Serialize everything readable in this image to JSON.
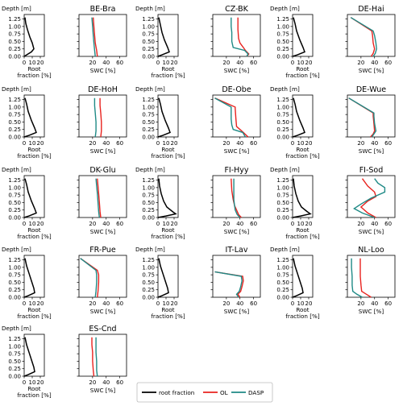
{
  "labels": {
    "depth": "Depth [m]",
    "root_line1": "Root",
    "root_line2": "fraction [%]",
    "swc": "SWC [%]"
  },
  "legend": {
    "items": [
      {
        "label": "root fraction",
        "color": "#000000"
      },
      {
        "label": "OL",
        "color": "#e8231f"
      },
      {
        "label": "DASP",
        "color": "#1f8a86"
      }
    ]
  },
  "colors": {
    "root": "#000000",
    "ol": "#e8231f",
    "dasp": "#1f8a86"
  },
  "chart_data": {
    "type": "line",
    "depth_ticks": [
      "0.00",
      "0.25",
      "0.50",
      "0.75",
      "1.00",
      "1.25"
    ],
    "root_ticks": [
      "0",
      "10",
      "20"
    ],
    "swc_ticks": [
      "20",
      "40",
      "60"
    ],
    "root_xlim": [
      0,
      25
    ],
    "swc_xlim": [
      0,
      70
    ],
    "ylim": [
      1.4,
      0.0
    ],
    "sites": [
      {
        "name": "BE-Bra",
        "root": [
          [
            0,
            0.0
          ],
          [
            3,
            0.05
          ],
          [
            9,
            0.15
          ],
          [
            12,
            0.25
          ],
          [
            10,
            0.45
          ],
          [
            7,
            0.65
          ],
          [
            4,
            0.9
          ],
          [
            2,
            1.1
          ],
          [
            1,
            1.3
          ]
        ],
        "ol": [
          [
            27,
            0.0
          ],
          [
            26,
            0.2
          ],
          [
            24,
            0.45
          ],
          [
            23,
            0.7
          ],
          [
            22,
            1.0
          ],
          [
            21,
            1.3
          ]
        ],
        "dasp": [
          [
            24,
            0.0
          ],
          [
            23,
            0.2
          ],
          [
            22,
            0.45
          ],
          [
            21,
            0.7
          ],
          [
            20,
            1.0
          ],
          [
            19,
            1.3
          ]
        ]
      },
      {
        "name": "CZ-BK",
        "root": [
          [
            0,
            0.0
          ],
          [
            5,
            0.05
          ],
          [
            14,
            0.15
          ],
          [
            12,
            0.3
          ],
          [
            8,
            0.55
          ],
          [
            5,
            0.8
          ],
          [
            3,
            1.05
          ],
          [
            1,
            1.3
          ]
        ],
        "ol": [
          [
            50,
            0.0
          ],
          [
            53,
            0.08
          ],
          [
            48,
            0.2
          ],
          [
            45,
            0.3
          ],
          [
            40,
            0.45
          ],
          [
            38,
            0.6
          ],
          [
            37,
            0.9
          ],
          [
            37,
            1.3
          ]
        ],
        "dasp": [
          [
            50,
            0.0
          ],
          [
            52,
            0.08
          ],
          [
            47,
            0.2
          ],
          [
            30,
            0.3
          ],
          [
            28,
            0.5
          ],
          [
            28,
            0.8
          ],
          [
            27,
            1.0
          ],
          [
            27,
            1.3
          ]
        ]
      },
      {
        "name": "DE-Hai",
        "root": [
          [
            0,
            0.0
          ],
          [
            6,
            0.05
          ],
          [
            15,
            0.15
          ],
          [
            13,
            0.3
          ],
          [
            9,
            0.55
          ],
          [
            5,
            0.85
          ],
          [
            3,
            1.1
          ],
          [
            1,
            1.3
          ]
        ],
        "ol": [
          [
            35,
            0.0
          ],
          [
            38,
            0.1
          ],
          [
            40,
            0.25
          ],
          [
            38,
            0.45
          ],
          [
            37,
            0.7
          ],
          [
            36,
            0.85
          ],
          [
            5,
            1.3
          ]
        ],
        "dasp": [
          [
            38,
            0.0
          ],
          [
            41,
            0.1
          ],
          [
            43,
            0.25
          ],
          [
            42,
            0.45
          ],
          [
            40,
            0.7
          ],
          [
            38,
            0.85
          ],
          [
            5,
            1.3
          ]
        ]
      },
      {
        "name": "DE-HoH",
        "root": [
          [
            0,
            0.0
          ],
          [
            6,
            0.05
          ],
          [
            15,
            0.15
          ],
          [
            13,
            0.3
          ],
          [
            9,
            0.55
          ],
          [
            5,
            0.85
          ],
          [
            3,
            1.1
          ],
          [
            1,
            1.3
          ]
        ],
        "ol": [
          [
            32,
            0.0
          ],
          [
            33,
            0.2
          ],
          [
            33,
            0.5
          ],
          [
            32,
            0.8
          ],
          [
            31,
            1.05
          ],
          [
            31,
            1.3
          ]
        ],
        "dasp": [
          [
            24,
            0.0
          ],
          [
            25,
            0.2
          ],
          [
            25,
            0.5
          ],
          [
            24,
            0.8
          ],
          [
            23,
            1.05
          ],
          [
            23,
            1.3
          ]
        ]
      },
      {
        "name": "DE-Obe",
        "root": [
          [
            0,
            0.0
          ],
          [
            6,
            0.05
          ],
          [
            15,
            0.15
          ],
          [
            13,
            0.3
          ],
          [
            9,
            0.55
          ],
          [
            5,
            0.85
          ],
          [
            3,
            1.1
          ],
          [
            1,
            1.3
          ]
        ],
        "ol": [
          [
            52,
            0.0
          ],
          [
            45,
            0.15
          ],
          [
            40,
            0.25
          ],
          [
            35,
            0.35
          ],
          [
            34,
            0.6
          ],
          [
            33,
            0.95
          ],
          [
            33,
            1.0
          ],
          [
            3,
            1.3
          ]
        ],
        "dasp": [
          [
            48,
            0.0
          ],
          [
            44,
            0.15
          ],
          [
            30,
            0.25
          ],
          [
            28,
            0.4
          ],
          [
            27,
            0.6
          ],
          [
            27,
            0.9
          ],
          [
            27,
            1.0
          ],
          [
            3,
            1.3
          ]
        ]
      },
      {
        "name": "DE-Wue",
        "root": [
          [
            0,
            0.0
          ],
          [
            6,
            0.05
          ],
          [
            15,
            0.15
          ],
          [
            13,
            0.3
          ],
          [
            9,
            0.55
          ],
          [
            5,
            0.85
          ],
          [
            3,
            1.1
          ],
          [
            1,
            1.3
          ]
        ],
        "ol": [
          [
            34,
            0.0
          ],
          [
            38,
            0.1
          ],
          [
            40,
            0.2
          ],
          [
            39,
            0.45
          ],
          [
            38,
            0.7
          ],
          [
            38,
            0.8
          ],
          [
            2,
            1.3
          ]
        ],
        "dasp": [
          [
            36,
            0.0
          ],
          [
            39,
            0.1
          ],
          [
            42,
            0.2
          ],
          [
            40,
            0.45
          ],
          [
            39,
            0.7
          ],
          [
            39,
            0.8
          ],
          [
            2,
            1.3
          ]
        ]
      },
      {
        "name": "DK-Glu",
        "root": [
          [
            0,
            0.0
          ],
          [
            6,
            0.05
          ],
          [
            15,
            0.15
          ],
          [
            13,
            0.3
          ],
          [
            9,
            0.55
          ],
          [
            5,
            0.85
          ],
          [
            3,
            1.1
          ],
          [
            1,
            1.3
          ]
        ],
        "ol": [
          [
            32,
            0.0
          ],
          [
            31,
            0.2
          ],
          [
            30,
            0.5
          ],
          [
            29,
            0.8
          ],
          [
            28,
            1.05
          ],
          [
            27,
            1.3
          ]
        ],
        "dasp": [
          [
            30,
            0.0
          ],
          [
            29,
            0.2
          ],
          [
            28,
            0.5
          ],
          [
            27,
            0.8
          ],
          [
            26,
            1.05
          ],
          [
            25,
            1.3
          ]
        ]
      },
      {
        "name": "FI-Hyy",
        "root": [
          [
            0,
            0.0
          ],
          [
            10,
            0.05
          ],
          [
            22,
            0.12
          ],
          [
            18,
            0.2
          ],
          [
            11,
            0.35
          ],
          [
            7,
            0.55
          ],
          [
            4,
            0.8
          ],
          [
            2,
            1.05
          ],
          [
            1,
            1.3
          ]
        ],
        "ol": [
          [
            42,
            0.0
          ],
          [
            38,
            0.1
          ],
          [
            35,
            0.25
          ],
          [
            32,
            0.4
          ],
          [
            30,
            0.6
          ],
          [
            28,
            0.9
          ],
          [
            27,
            1.3
          ]
        ],
        "dasp": [
          [
            40,
            0.0
          ],
          [
            36,
            0.1
          ],
          [
            33,
            0.25
          ],
          [
            32,
            0.4
          ],
          [
            31,
            0.6
          ],
          [
            31,
            0.9
          ],
          [
            31,
            1.3
          ]
        ]
      },
      {
        "name": "FI-Sod",
        "root": [
          [
            0,
            0.0
          ],
          [
            10,
            0.05
          ],
          [
            22,
            0.12
          ],
          [
            18,
            0.2
          ],
          [
            11,
            0.35
          ],
          [
            7,
            0.55
          ],
          [
            4,
            0.8
          ],
          [
            2,
            1.05
          ],
          [
            1,
            1.3
          ]
        ],
        "ol": [
          [
            42,
            0.0
          ],
          [
            30,
            0.15
          ],
          [
            20,
            0.35
          ],
          [
            30,
            0.55
          ],
          [
            42,
            0.7
          ],
          [
            40,
            0.85
          ],
          [
            30,
            1.05
          ],
          [
            22,
            1.3
          ]
        ],
        "dasp": [
          [
            40,
            0.0
          ],
          [
            22,
            0.15
          ],
          [
            10,
            0.3
          ],
          [
            20,
            0.45
          ],
          [
            35,
            0.65
          ],
          [
            55,
            0.85
          ],
          [
            55,
            1.0
          ],
          [
            45,
            1.15
          ],
          [
            40,
            1.3
          ]
        ]
      },
      {
        "name": "FR-Pue",
        "root": [
          [
            0,
            0.0
          ],
          [
            5,
            0.05
          ],
          [
            13,
            0.15
          ],
          [
            12,
            0.3
          ],
          [
            9,
            0.55
          ],
          [
            6,
            0.8
          ],
          [
            3,
            1.05
          ],
          [
            1,
            1.3
          ]
        ],
        "ol": [
          [
            27,
            0.0
          ],
          [
            28,
            0.2
          ],
          [
            29,
            0.5
          ],
          [
            29,
            0.75
          ],
          [
            27,
            0.9
          ],
          [
            2,
            1.3
          ]
        ],
        "dasp": [
          [
            24,
            0.0
          ],
          [
            25,
            0.2
          ],
          [
            26,
            0.5
          ],
          [
            26,
            0.75
          ],
          [
            25,
            0.9
          ],
          [
            2,
            1.3
          ]
        ]
      },
      {
        "name": "IT-Lav",
        "root": [
          [
            0,
            0.0
          ],
          [
            5,
            0.05
          ],
          [
            13,
            0.15
          ],
          [
            12,
            0.3
          ],
          [
            9,
            0.55
          ],
          [
            6,
            0.8
          ],
          [
            3,
            1.05
          ],
          [
            1,
            1.3
          ]
        ],
        "ol": [
          [
            40,
            0.0
          ],
          [
            37,
            0.1
          ],
          [
            41,
            0.2
          ],
          [
            43,
            0.35
          ],
          [
            45,
            0.55
          ],
          [
            44,
            0.7
          ],
          [
            3,
            0.85
          ]
        ],
        "dasp": [
          [
            38,
            0.0
          ],
          [
            35,
            0.1
          ],
          [
            39,
            0.2
          ],
          [
            41,
            0.35
          ],
          [
            43,
            0.55
          ],
          [
            42,
            0.7
          ],
          [
            3,
            0.85
          ]
        ]
      },
      {
        "name": "NL-Loo",
        "root": [
          [
            0,
            0.0
          ],
          [
            5,
            0.05
          ],
          [
            13,
            0.15
          ],
          [
            12,
            0.3
          ],
          [
            9,
            0.55
          ],
          [
            6,
            0.8
          ],
          [
            3,
            1.05
          ],
          [
            1,
            1.3
          ]
        ],
        "ol": [
          [
            35,
            0.0
          ],
          [
            28,
            0.1
          ],
          [
            21,
            0.2
          ],
          [
            20,
            0.4
          ],
          [
            19,
            0.7
          ],
          [
            19,
            1.0
          ],
          [
            19,
            1.3
          ]
        ],
        "dasp": [
          [
            22,
            0.0
          ],
          [
            14,
            0.1
          ],
          [
            8,
            0.2
          ],
          [
            7,
            0.4
          ],
          [
            7,
            0.7
          ],
          [
            6,
            1.0
          ],
          [
            6,
            1.3
          ]
        ]
      },
      {
        "name": "ES-Cnd",
        "root": [
          [
            0,
            0.0
          ],
          [
            5,
            0.05
          ],
          [
            13,
            0.15
          ],
          [
            12,
            0.3
          ],
          [
            9,
            0.55
          ],
          [
            6,
            0.8
          ],
          [
            3,
            1.05
          ],
          [
            1,
            1.3
          ]
        ],
        "ol": [
          [
            22,
            0.0
          ],
          [
            21,
            0.2
          ],
          [
            20,
            0.5
          ],
          [
            20,
            0.8
          ],
          [
            19,
            1.05
          ],
          [
            19,
            1.3
          ]
        ],
        "dasp": [
          [
            27,
            0.0
          ],
          [
            26,
            0.2
          ],
          [
            26,
            0.5
          ],
          [
            25,
            0.8
          ],
          [
            25,
            1.05
          ],
          [
            25,
            1.3
          ]
        ]
      }
    ]
  }
}
